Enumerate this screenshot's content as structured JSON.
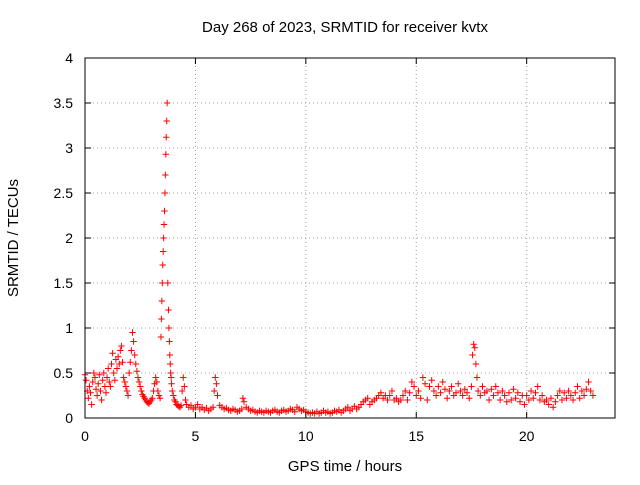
{
  "chart_data": {
    "type": "scatter",
    "title": "Day 268 of 2023, SRMTID for receiver kvtx",
    "xlabel": "GPS time / hours",
    "ylabel": "SRMTID / TECUs",
    "xlim": [
      0,
      24
    ],
    "ylim": [
      0,
      4
    ],
    "x_ticks": [
      0,
      5,
      10,
      15,
      20
    ],
    "x_tick_labels": [
      "0",
      "5",
      "10",
      "15",
      "20"
    ],
    "y_ticks": [
      0,
      0.5,
      1,
      1.5,
      2,
      2.5,
      3,
      3.5,
      4
    ],
    "y_tick_labels": [
      "0",
      "0.5",
      "1",
      "1.5",
      "2",
      "2.5",
      "3",
      "3.5",
      "4"
    ],
    "grid": true,
    "marker": "+",
    "colors": {
      "series": "#ff0000",
      "grid": "#a0a0a0",
      "axis": "#000000"
    },
    "series": [
      {
        "name": "SRMTID",
        "points": [
          [
            0.0,
            0.48
          ],
          [
            0.05,
            0.42
          ],
          [
            0.1,
            0.3
          ],
          [
            0.15,
            0.22
          ],
          [
            0.2,
            0.35
          ],
          [
            0.25,
            0.28
          ],
          [
            0.3,
            0.15
          ],
          [
            0.35,
            0.4
          ],
          [
            0.4,
            0.5
          ],
          [
            0.45,
            0.45
          ],
          [
            0.5,
            0.32
          ],
          [
            0.55,
            0.25
          ],
          [
            0.6,
            0.38
          ],
          [
            0.65,
            0.48
          ],
          [
            0.7,
            0.3
          ],
          [
            0.75,
            0.2
          ],
          [
            0.8,
            0.42
          ],
          [
            0.85,
            0.5
          ],
          [
            0.9,
            0.35
          ],
          [
            0.95,
            0.28
          ],
          [
            1.0,
            0.45
          ],
          [
            1.05,
            0.55
          ],
          [
            1.1,
            0.4
          ],
          [
            1.15,
            0.35
          ],
          [
            1.2,
            0.6
          ],
          [
            1.25,
            0.72
          ],
          [
            1.3,
            0.5
          ],
          [
            1.35,
            0.42
          ],
          [
            1.4,
            0.65
          ],
          [
            1.45,
            0.55
          ],
          [
            1.5,
            0.68
          ],
          [
            1.55,
            0.6
          ],
          [
            1.6,
            0.75
          ],
          [
            1.65,
            0.8
          ],
          [
            1.7,
            0.62
          ],
          [
            1.75,
            0.45
          ],
          [
            1.8,
            0.4
          ],
          [
            1.85,
            0.35
          ],
          [
            1.9,
            0.3
          ],
          [
            1.95,
            0.25
          ],
          [
            2.0,
            0.5
          ],
          [
            2.05,
            0.62
          ],
          [
            2.1,
            0.75
          ],
          [
            2.15,
            0.95
          ],
          [
            2.2,
            0.85
          ],
          [
            2.25,
            0.7
          ],
          [
            2.3,
            0.6
          ],
          [
            2.35,
            0.52
          ],
          [
            2.4,
            0.45
          ],
          [
            2.45,
            0.4
          ],
          [
            2.5,
            0.35
          ],
          [
            2.55,
            0.3
          ],
          [
            2.6,
            0.26
          ],
          [
            2.65,
            0.24
          ],
          [
            2.7,
            0.22
          ],
          [
            2.75,
            0.2
          ],
          [
            2.8,
            0.18
          ],
          [
            2.85,
            0.17
          ],
          [
            2.9,
            0.16
          ],
          [
            2.95,
            0.18
          ],
          [
            3.0,
            0.2
          ],
          [
            3.05,
            0.22
          ],
          [
            3.1,
            0.3
          ],
          [
            3.15,
            0.38
          ],
          [
            3.2,
            0.45
          ],
          [
            3.25,
            0.4
          ],
          [
            3.3,
            0.3
          ],
          [
            3.35,
            0.25
          ],
          [
            3.4,
            0.22
          ],
          [
            3.44,
            0.9
          ],
          [
            3.46,
            1.1
          ],
          [
            3.48,
            1.3
          ],
          [
            3.5,
            1.5
          ],
          [
            3.52,
            1.7
          ],
          [
            3.54,
            1.85
          ],
          [
            3.56,
            2.0
          ],
          [
            3.58,
            2.15
          ],
          [
            3.6,
            2.3
          ],
          [
            3.62,
            2.5
          ],
          [
            3.64,
            2.7
          ],
          [
            3.66,
            2.93
          ],
          [
            3.68,
            3.12
          ],
          [
            3.7,
            3.3
          ],
          [
            3.72,
            3.5
          ],
          [
            3.75,
            1.5
          ],
          [
            3.78,
            1.2
          ],
          [
            3.8,
            1.0
          ],
          [
            3.82,
            0.85
          ],
          [
            3.84,
            0.7
          ],
          [
            3.86,
            0.6
          ],
          [
            3.88,
            0.5
          ],
          [
            3.9,
            0.45
          ],
          [
            3.92,
            0.38
          ],
          [
            3.95,
            0.3
          ],
          [
            4.0,
            0.25
          ],
          [
            4.05,
            0.2
          ],
          [
            4.1,
            0.18
          ],
          [
            4.15,
            0.15
          ],
          [
            4.2,
            0.14
          ],
          [
            4.25,
            0.13
          ],
          [
            4.3,
            0.12
          ],
          [
            4.35,
            0.14
          ],
          [
            4.4,
            0.3
          ],
          [
            4.45,
            0.45
          ],
          [
            4.5,
            0.35
          ],
          [
            4.55,
            0.2
          ],
          [
            4.6,
            0.15
          ],
          [
            4.7,
            0.12
          ],
          [
            4.8,
            0.14
          ],
          [
            4.9,
            0.1
          ],
          [
            5.0,
            0.12
          ],
          [
            5.1,
            0.15
          ],
          [
            5.2,
            0.1
          ],
          [
            5.3,
            0.12
          ],
          [
            5.4,
            0.09
          ],
          [
            5.5,
            0.11
          ],
          [
            5.6,
            0.08
          ],
          [
            5.7,
            0.1
          ],
          [
            5.8,
            0.12
          ],
          [
            5.85,
            0.3
          ],
          [
            5.9,
            0.45
          ],
          [
            5.95,
            0.38
          ],
          [
            6.0,
            0.25
          ],
          [
            6.1,
            0.14
          ],
          [
            6.2,
            0.12
          ],
          [
            6.3,
            0.1
          ],
          [
            6.4,
            0.11
          ],
          [
            6.5,
            0.09
          ],
          [
            6.6,
            0.08
          ],
          [
            6.7,
            0.1
          ],
          [
            6.8,
            0.09
          ],
          [
            6.9,
            0.07
          ],
          [
            7.0,
            0.08
          ],
          [
            7.1,
            0.1
          ],
          [
            7.15,
            0.22
          ],
          [
            7.2,
            0.18
          ],
          [
            7.3,
            0.12
          ],
          [
            7.4,
            0.1
          ],
          [
            7.5,
            0.08
          ],
          [
            7.6,
            0.09
          ],
          [
            7.7,
            0.07
          ],
          [
            7.8,
            0.06
          ],
          [
            7.9,
            0.08
          ],
          [
            8.0,
            0.07
          ],
          [
            8.1,
            0.06
          ],
          [
            8.2,
            0.08
          ],
          [
            8.3,
            0.07
          ],
          [
            8.4,
            0.06
          ],
          [
            8.5,
            0.08
          ],
          [
            8.6,
            0.09
          ],
          [
            8.7,
            0.07
          ],
          [
            8.8,
            0.06
          ],
          [
            8.9,
            0.08
          ],
          [
            9.0,
            0.09
          ],
          [
            9.1,
            0.07
          ],
          [
            9.2,
            0.08
          ],
          [
            9.3,
            0.1
          ],
          [
            9.4,
            0.09
          ],
          [
            9.5,
            0.07
          ],
          [
            9.6,
            0.12
          ],
          [
            9.7,
            0.1
          ],
          [
            9.8,
            0.08
          ],
          [
            9.9,
            0.09
          ],
          [
            10.0,
            0.07
          ],
          [
            10.1,
            0.06
          ],
          [
            10.2,
            0.05
          ],
          [
            10.3,
            0.06
          ],
          [
            10.4,
            0.05
          ],
          [
            10.5,
            0.07
          ],
          [
            10.6,
            0.05
          ],
          [
            10.7,
            0.06
          ],
          [
            10.8,
            0.08
          ],
          [
            10.9,
            0.06
          ],
          [
            11.0,
            0.07
          ],
          [
            11.1,
            0.05
          ],
          [
            11.2,
            0.06
          ],
          [
            11.3,
            0.08
          ],
          [
            11.4,
            0.07
          ],
          [
            11.5,
            0.09
          ],
          [
            11.6,
            0.06
          ],
          [
            11.7,
            0.08
          ],
          [
            11.8,
            0.1
          ],
          [
            11.9,
            0.12
          ],
          [
            12.0,
            0.08
          ],
          [
            12.1,
            0.1
          ],
          [
            12.2,
            0.13
          ],
          [
            12.3,
            0.1
          ],
          [
            12.4,
            0.12
          ],
          [
            12.5,
            0.15
          ],
          [
            12.6,
            0.18
          ],
          [
            12.7,
            0.2
          ],
          [
            12.8,
            0.22
          ],
          [
            12.9,
            0.15
          ],
          [
            13.0,
            0.18
          ],
          [
            13.1,
            0.2
          ],
          [
            13.2,
            0.22
          ],
          [
            13.3,
            0.25
          ],
          [
            13.4,
            0.28
          ],
          [
            13.5,
            0.22
          ],
          [
            13.6,
            0.25
          ],
          [
            13.7,
            0.2
          ],
          [
            13.8,
            0.25
          ],
          [
            13.9,
            0.3
          ],
          [
            14.0,
            0.2
          ],
          [
            14.1,
            0.22
          ],
          [
            14.2,
            0.18
          ],
          [
            14.3,
            0.2
          ],
          [
            14.4,
            0.25
          ],
          [
            14.5,
            0.3
          ],
          [
            14.6,
            0.2
          ],
          [
            14.7,
            0.28
          ],
          [
            14.8,
            0.4
          ],
          [
            14.9,
            0.35
          ],
          [
            15.0,
            0.25
          ],
          [
            15.1,
            0.3
          ],
          [
            15.2,
            0.22
          ],
          [
            15.3,
            0.45
          ],
          [
            15.4,
            0.38
          ],
          [
            15.5,
            0.2
          ],
          [
            15.6,
            0.35
          ],
          [
            15.7,
            0.42
          ],
          [
            15.8,
            0.3
          ],
          [
            15.9,
            0.25
          ],
          [
            16.0,
            0.35
          ],
          [
            16.1,
            0.28
          ],
          [
            16.2,
            0.4
          ],
          [
            16.3,
            0.32
          ],
          [
            16.4,
            0.22
          ],
          [
            16.5,
            0.3
          ],
          [
            16.6,
            0.35
          ],
          [
            16.7,
            0.25
          ],
          [
            16.8,
            0.28
          ],
          [
            16.9,
            0.38
          ],
          [
            17.0,
            0.3
          ],
          [
            17.1,
            0.25
          ],
          [
            17.2,
            0.32
          ],
          [
            17.3,
            0.28
          ],
          [
            17.4,
            0.22
          ],
          [
            17.5,
            0.35
          ],
          [
            17.55,
            0.7
          ],
          [
            17.6,
            0.82
          ],
          [
            17.65,
            0.78
          ],
          [
            17.7,
            0.6
          ],
          [
            17.75,
            0.45
          ],
          [
            17.8,
            0.3
          ],
          [
            17.9,
            0.25
          ],
          [
            18.0,
            0.35
          ],
          [
            18.1,
            0.28
          ],
          [
            18.2,
            0.3
          ],
          [
            18.3,
            0.2
          ],
          [
            18.4,
            0.32
          ],
          [
            18.5,
            0.25
          ],
          [
            18.6,
            0.35
          ],
          [
            18.7,
            0.28
          ],
          [
            18.8,
            0.2
          ],
          [
            18.9,
            0.3
          ],
          [
            19.0,
            0.25
          ],
          [
            19.1,
            0.18
          ],
          [
            19.2,
            0.28
          ],
          [
            19.3,
            0.2
          ],
          [
            19.4,
            0.32
          ],
          [
            19.5,
            0.22
          ],
          [
            19.6,
            0.28
          ],
          [
            19.7,
            0.18
          ],
          [
            19.8,
            0.25
          ],
          [
            19.9,
            0.15
          ],
          [
            20.0,
            0.25
          ],
          [
            20.1,
            0.2
          ],
          [
            20.2,
            0.3
          ],
          [
            20.3,
            0.22
          ],
          [
            20.4,
            0.28
          ],
          [
            20.5,
            0.35
          ],
          [
            20.6,
            0.2
          ],
          [
            20.7,
            0.25
          ],
          [
            20.8,
            0.18
          ],
          [
            20.9,
            0.2
          ],
          [
            21.0,
            0.15
          ],
          [
            21.1,
            0.22
          ],
          [
            21.2,
            0.12
          ],
          [
            21.3,
            0.18
          ],
          [
            21.4,
            0.25
          ],
          [
            21.5,
            0.3
          ],
          [
            21.6,
            0.2
          ],
          [
            21.7,
            0.28
          ],
          [
            21.8,
            0.22
          ],
          [
            21.9,
            0.3
          ],
          [
            22.0,
            0.25
          ],
          [
            22.1,
            0.2
          ],
          [
            22.2,
            0.28
          ],
          [
            22.3,
            0.35
          ],
          [
            22.4,
            0.22
          ],
          [
            22.5,
            0.3
          ],
          [
            22.6,
            0.25
          ],
          [
            22.7,
            0.32
          ],
          [
            22.8,
            0.4
          ],
          [
            22.9,
            0.3
          ],
          [
            23.0,
            0.25
          ]
        ]
      }
    ]
  }
}
